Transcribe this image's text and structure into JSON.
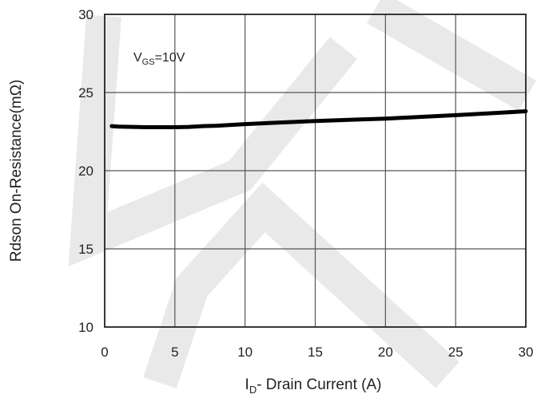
{
  "chart_data": {
    "type": "line",
    "xlabel_main": "I",
    "xlabel_sub": "D",
    "xlabel_rest": "- Drain Current (A)",
    "ylabel": "Rdson On-Resistance(mΩ)",
    "xlim": [
      0,
      30
    ],
    "ylim": [
      10,
      30
    ],
    "x_ticks": [
      "0",
      "5",
      "10",
      "15",
      "20",
      "25",
      "30"
    ],
    "y_ticks": [
      "10",
      "15",
      "20",
      "25",
      "30"
    ],
    "grid": true,
    "annotation": {
      "main": "V",
      "sub": "GS",
      "rest": "=10V"
    },
    "series": [
      {
        "x": [
          0.5,
          1,
          2,
          3,
          4,
          5,
          6,
          7,
          8,
          10,
          12,
          15,
          18,
          20,
          22,
          25,
          28,
          30
        ],
        "values": [
          22.85,
          22.82,
          22.8,
          22.78,
          22.78,
          22.78,
          22.8,
          22.85,
          22.88,
          22.98,
          23.06,
          23.18,
          23.27,
          23.33,
          23.42,
          23.55,
          23.7,
          23.8
        ]
      }
    ]
  }
}
